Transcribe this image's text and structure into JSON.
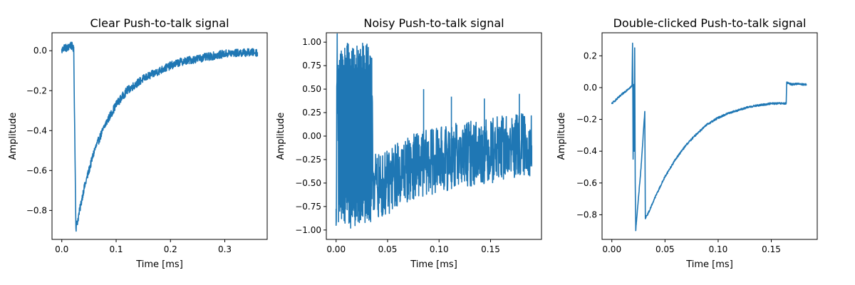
{
  "chart_data": [
    {
      "type": "line",
      "title": "Clear Push-to-talk signal",
      "xlabel": "Time [ms]",
      "ylabel": "Amplitude",
      "xlim": [
        -0.018,
        0.378
      ],
      "ylim": [
        -0.945,
        0.09
      ],
      "xticks": [
        0.0,
        0.1,
        0.2,
        0.3
      ],
      "xtick_labels": [
        "0.0",
        "0.1",
        "0.2",
        "0.3"
      ],
      "yticks": [
        0.0,
        -0.2,
        -0.4,
        -0.6,
        -0.8
      ],
      "ytick_labels": [
        "0.0",
        "−0.2",
        "−0.4",
        "−0.6",
        "−0.8"
      ],
      "color": "#1f77b4",
      "grid": false,
      "series": [
        {
          "x": [
            0.0,
            0.005,
            0.01,
            0.015,
            0.02,
            0.022,
            0.024,
            0.026,
            0.03,
            0.04,
            0.05,
            0.06,
            0.08,
            0.1,
            0.12,
            0.15,
            0.18,
            0.2,
            0.22,
            0.25,
            0.28,
            0.3,
            0.33,
            0.36
          ],
          "y": [
            0.0,
            0.02,
            0.01,
            0.03,
            0.02,
            0.0,
            -0.45,
            -0.89,
            -0.84,
            -0.7,
            -0.6,
            -0.5,
            -0.37,
            -0.27,
            -0.2,
            -0.14,
            -0.1,
            -0.075,
            -0.055,
            -0.04,
            -0.025,
            -0.015,
            -0.01,
            -0.008
          ],
          "noise_amplitude": 0.02
        }
      ]
    },
    {
      "type": "line",
      "title": "Noisy Push-to-talk signal",
      "xlabel": "Time [ms]",
      "ylabel": "Amplitude",
      "xlim": [
        -0.0095,
        0.1995
      ],
      "ylim": [
        -1.1,
        1.1
      ],
      "xticks": [
        0.0,
        0.05,
        0.1,
        0.15
      ],
      "xtick_labels": [
        "0.00",
        "0.05",
        "0.10",
        "0.15"
      ],
      "yticks": [
        1.0,
        0.75,
        0.5,
        0.25,
        0.0,
        -0.25,
        -0.5,
        -0.75,
        -1.0
      ],
      "ytick_labels": [
        "1.00",
        "0.75",
        "0.50",
        "0.25",
        "0.00",
        "−0.25",
        "−0.50",
        "−0.75",
        "−1.00"
      ],
      "color": "#1f77b4",
      "grid": false,
      "series": [
        {
          "x": [
            0.0,
            0.001,
            0.002,
            0.035,
            0.036,
            0.04,
            0.05,
            0.06,
            0.07,
            0.08,
            0.09,
            0.1,
            0.12,
            0.14,
            0.16,
            0.18,
            0.19
          ],
          "y": [
            -0.95,
            0.9,
            0.2,
            0.2,
            -0.45,
            -0.55,
            -0.5,
            -0.4,
            -0.35,
            -0.3,
            -0.28,
            -0.25,
            -0.2,
            -0.17,
            -0.13,
            -0.1,
            -0.1
          ],
          "noise_amplitude": 0.35,
          "burst": {
            "x_start": 0.002,
            "x_end": 0.035,
            "ymin": -0.99,
            "ymax": 1.0
          },
          "spikes": [
            {
              "x": 0.085,
              "y": 0.5
            },
            {
              "x": 0.112,
              "y": 0.42
            },
            {
              "x": 0.144,
              "y": 0.4
            },
            {
              "x": 0.178,
              "y": 0.45
            }
          ]
        }
      ]
    },
    {
      "type": "line",
      "title": "Double-clicked Push-to-talk signal",
      "xlabel": "Time [ms]",
      "ylabel": "Amplitude",
      "xlim": [
        -0.0092,
        0.1932
      ],
      "ylim": [
        -0.955,
        0.345
      ],
      "xticks": [
        0.0,
        0.05,
        0.1,
        0.15
      ],
      "xtick_labels": [
        "0.00",
        "0.05",
        "0.10",
        "0.15"
      ],
      "yticks": [
        0.2,
        0.0,
        -0.2,
        -0.4,
        -0.6,
        -0.8
      ],
      "ytick_labels": [
        "0.2",
        "0.0",
        "−0.2",
        "−0.4",
        "−0.6",
        "−0.8"
      ],
      "color": "#1f77b4",
      "grid": false,
      "series": [
        {
          "x": [
            0.0,
            0.005,
            0.01,
            0.015,
            0.019,
            0.0195,
            0.02,
            0.0205,
            0.021,
            0.0215,
            0.022,
            0.0225,
            0.023,
            0.025,
            0.0275,
            0.029,
            0.0305,
            0.031,
            0.0315,
            0.035,
            0.04,
            0.05,
            0.06,
            0.07,
            0.08,
            0.09,
            0.1,
            0.11,
            0.12,
            0.13,
            0.14,
            0.15,
            0.164,
            0.1645,
            0.17,
            0.175,
            0.18,
            0.183
          ],
          "y": [
            -0.1,
            -0.07,
            -0.04,
            -0.01,
            0.01,
            0.28,
            -0.45,
            0.02,
            -0.4,
            0.25,
            -0.6,
            -0.9,
            -0.85,
            -0.7,
            -0.5,
            -0.35,
            -0.2,
            -0.15,
            -0.82,
            -0.78,
            -0.7,
            -0.56,
            -0.45,
            -0.36,
            -0.29,
            -0.23,
            -0.19,
            -0.16,
            -0.14,
            -0.12,
            -0.11,
            -0.1,
            -0.1,
            0.03,
            0.02,
            0.025,
            0.02,
            0.02
          ],
          "noise_amplitude": 0.006
        }
      ]
    }
  ]
}
